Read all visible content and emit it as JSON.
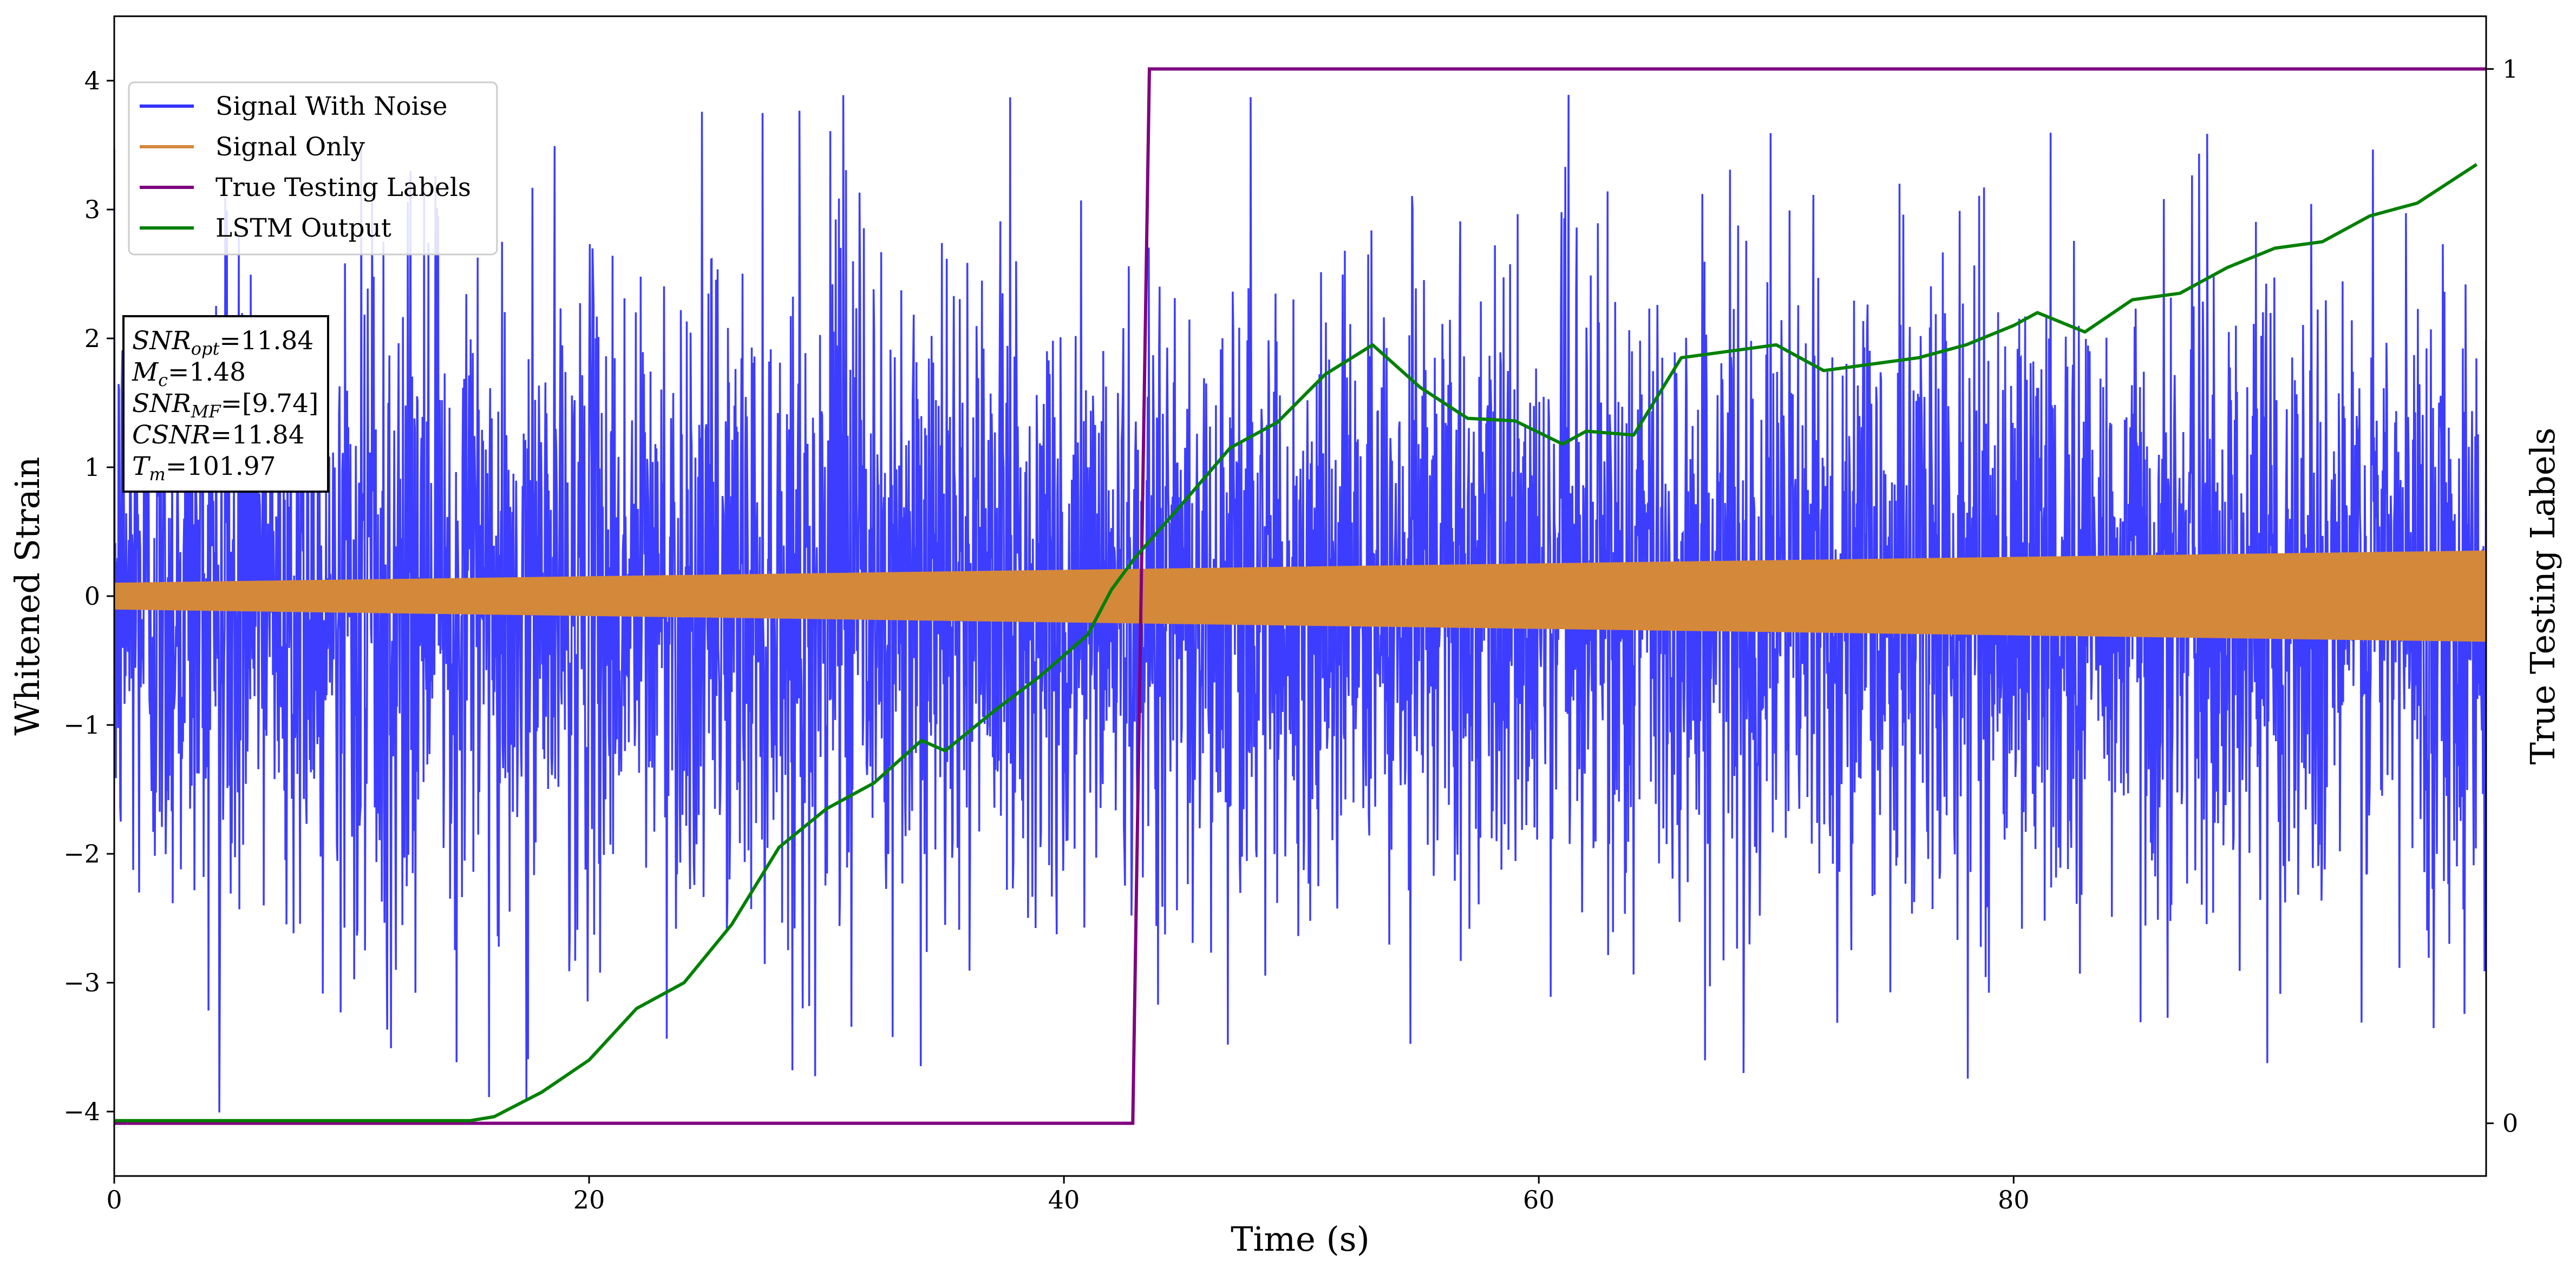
{
  "chart_data": {
    "type": "line",
    "xlabel": "Time (s)",
    "ylabel": "Whitened Strain",
    "ylabel_right": "True Testing Labels",
    "xlim": [
      0,
      99.9
    ],
    "ylim": [
      -4.5,
      4.5
    ],
    "ylim_right": [
      -0.05,
      1.05
    ],
    "x_ticks": [
      0,
      20,
      40,
      60,
      80
    ],
    "y_ticks": [
      -4,
      -3,
      -2,
      -1,
      0,
      1,
      2,
      3,
      4
    ],
    "y_ticks_right": [
      0,
      1
    ],
    "grid": false,
    "legend_position": "top-left",
    "series": [
      {
        "name": "Signal With Noise",
        "color": "#3333ff",
        "axis": "left",
        "description_stats": {
          "typical_abs": 1.5,
          "peak_max": 4.0,
          "peak_min": -4.05
        }
      },
      {
        "name": "Signal Only",
        "color": "#d4883a",
        "axis": "left",
        "envelope": {
          "x": [
            0,
            99.9
          ],
          "amplitude": [
            0.1,
            0.35
          ]
        }
      },
      {
        "name": "True Testing Labels",
        "color": "#800080",
        "axis": "right",
        "x": [
          0,
          42.9,
          43.6,
          99.9
        ],
        "y": [
          0,
          0,
          1,
          1
        ]
      },
      {
        "name": "LSTM Output",
        "color": "#008000",
        "axis": "left",
        "x": [
          0,
          15,
          16,
          18,
          20,
          22,
          24,
          26,
          28,
          30,
          32,
          34,
          35,
          37,
          39,
          41,
          42,
          43,
          45,
          47,
          49,
          51,
          53,
          55,
          57,
          59,
          61,
          62,
          64,
          66,
          68,
          70,
          72,
          74,
          76,
          78,
          80,
          81,
          83,
          85,
          87,
          89,
          91,
          93,
          95,
          97,
          99.5
        ],
        "y": [
          -4.07,
          -4.07,
          -4.04,
          -3.85,
          -3.6,
          -3.2,
          -3.0,
          -2.55,
          -1.95,
          -1.65,
          -1.45,
          -1.12,
          -1.2,
          -0.9,
          -0.62,
          -0.3,
          0.05,
          0.3,
          0.72,
          1.15,
          1.35,
          1.72,
          1.95,
          1.62,
          1.38,
          1.36,
          1.18,
          1.28,
          1.25,
          1.85,
          1.9,
          1.95,
          1.75,
          1.8,
          1.85,
          1.95,
          2.1,
          2.2,
          2.05,
          2.3,
          2.35,
          2.55,
          2.7,
          2.75,
          2.95,
          3.05,
          3.35
        ]
      }
    ],
    "annotation_lines": [
      {
        "var": "SNR",
        "sub": "opt",
        "value": "=11.84"
      },
      {
        "var": "M",
        "sub": "c",
        "value": "=1.48"
      },
      {
        "var": "SNR",
        "sub": "MF",
        "value": "=[9.74]"
      },
      {
        "var": "CSNR",
        "sub": "",
        "value": "=11.84"
      },
      {
        "var": "T",
        "sub": "m",
        "value": "=101.97"
      }
    ]
  }
}
